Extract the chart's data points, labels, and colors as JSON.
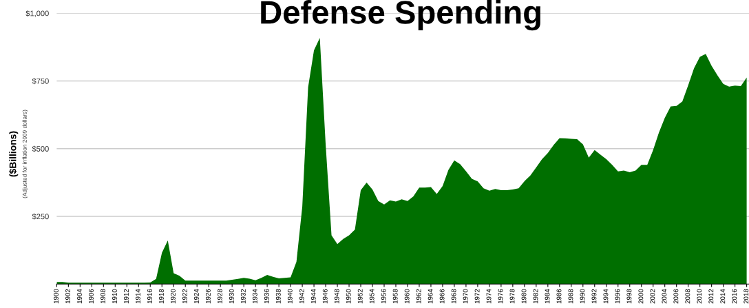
{
  "chart_data": {
    "type": "area",
    "title": "Defense Spending",
    "ylabel": "($Billions)",
    "annotations": [
      "(Adjusted for inflation 2009 dollars)"
    ],
    "x": [
      1900,
      1901,
      1902,
      1903,
      1904,
      1905,
      1906,
      1907,
      1908,
      1909,
      1910,
      1911,
      1912,
      1913,
      1914,
      1915,
      1916,
      1917,
      1918,
      1919,
      1920,
      1921,
      1922,
      1923,
      1924,
      1925,
      1926,
      1927,
      1928,
      1929,
      1930,
      1931,
      1932,
      1933,
      1934,
      1935,
      1936,
      1937,
      1938,
      1939,
      1940,
      1941,
      1942,
      1943,
      1944,
      1945,
      1946,
      1947,
      1948,
      1949,
      1950,
      1951,
      1952,
      1953,
      1954,
      1955,
      1956,
      1957,
      1958,
      1959,
      1960,
      1961,
      1962,
      1963,
      1964,
      1965,
      1966,
      1967,
      1968,
      1969,
      1970,
      1971,
      1972,
      1973,
      1974,
      1975,
      1976,
      1977,
      1978,
      1979,
      1980,
      1981,
      1982,
      1983,
      1984,
      1985,
      1986,
      1987,
      1988,
      1989,
      1990,
      1991,
      1992,
      1993,
      1994,
      1995,
      1996,
      1997,
      1998,
      1999,
      2000,
      2001,
      2002,
      2003,
      2004,
      2005,
      2006,
      2007,
      2008,
      2009,
      2010,
      2011,
      2012,
      2013,
      2014,
      2015,
      2016,
      2017,
      2018
    ],
    "series": [
      {
        "color": "#006f00",
        "values": [
          8,
          8,
          5,
          5,
          5,
          5,
          5,
          5,
          5,
          5,
          5,
          5,
          5,
          5,
          5,
          5,
          6,
          19,
          116,
          161,
          40,
          31,
          13,
          13,
          13,
          13,
          13,
          13,
          13,
          13,
          16,
          19,
          23,
          20,
          14,
          23,
          34,
          27,
          21,
          23,
          25,
          82,
          286,
          727,
          863,
          909,
          515,
          180,
          148,
          167,
          180,
          201,
          347,
          375,
          349,
          307,
          294,
          309,
          305,
          313,
          307,
          324,
          356,
          356,
          358,
          333,
          362,
          422,
          457,
          443,
          417,
          389,
          379,
          354,
          345,
          351,
          347,
          347,
          349,
          354,
          380,
          401,
          431,
          461,
          484,
          514,
          539,
          538,
          536,
          535,
          516,
          467,
          495,
          478,
          461,
          440,
          416,
          419,
          413,
          419,
          440,
          440,
          495,
          560,
          614,
          656,
          658,
          674,
          734,
          797,
          839,
          850,
          806,
          771,
          739,
          729,
          733,
          731,
          763
        ]
      }
    ],
    "xlim": [
      1900,
      2018.4
    ],
    "xticks": [
      1900,
      1902,
      1904,
      1906,
      1908,
      1910,
      1912,
      1914,
      1916,
      1918,
      1920,
      1922,
      1924,
      1926,
      1928,
      1930,
      1932,
      1934,
      1936,
      1938,
      1940,
      1942,
      1944,
      1946,
      1948,
      1950,
      1952,
      1954,
      1956,
      1958,
      1960,
      1962,
      1964,
      1966,
      1968,
      1970,
      1972,
      1974,
      1976,
      1978,
      1980,
      1982,
      1984,
      1986,
      1988,
      1990,
      1992,
      1994,
      1996,
      1998,
      2000,
      2002,
      2004,
      2006,
      2008,
      2010,
      2012,
      2014,
      2016,
      2018
    ],
    "ylim": [
      0,
      1000
    ],
    "yticks": [
      {
        "value": 250,
        "label": "$250"
      },
      {
        "value": 500,
        "label": "$500"
      },
      {
        "value": 750,
        "label": "$750"
      },
      {
        "value": 1000,
        "label": "$1,000"
      }
    ],
    "grid": "y",
    "legend": false
  }
}
